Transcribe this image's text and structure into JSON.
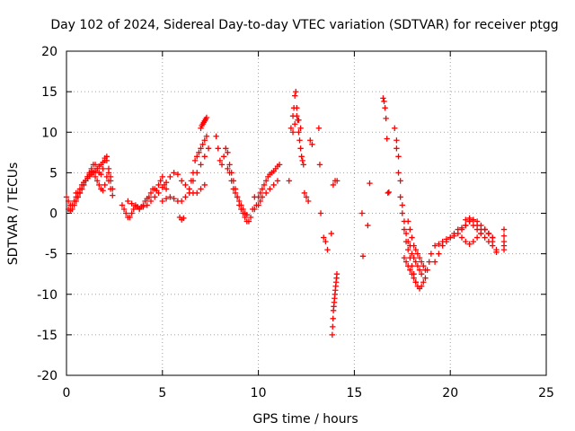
{
  "chart_data": {
    "type": "scatter",
    "title": "Day 102 of 2024, Sidereal Day-to-day VTEC variation (SDTVAR) for receiver ptgg",
    "xlabel": "GPS time / hours",
    "ylabel": "SDTVAR / TECUs",
    "xlim": [
      0,
      25
    ],
    "ylim": [
      -20,
      20
    ],
    "x_ticks": [
      0,
      5,
      10,
      15,
      20,
      25
    ],
    "y_ticks": [
      -20,
      -15,
      -10,
      -5,
      0,
      5,
      10,
      15,
      20
    ],
    "grid": true,
    "marker": "+",
    "series_color": "#ff0000",
    "series": [
      {
        "name": "t00",
        "x": [
          0.0,
          0.1,
          0.2,
          0.3,
          0.4,
          0.5,
          0.6,
          0.7,
          0.8,
          0.9,
          1.0,
          1.1,
          1.2,
          1.3,
          1.4,
          1.5,
          1.6,
          1.7,
          1.8,
          1.9,
          2.0,
          2.1,
          2.2,
          2.3,
          2.4
        ],
        "values": [
          2.0,
          1.5,
          1.0,
          1.0,
          1.5,
          2.0,
          2.5,
          3.0,
          3.5,
          3.8,
          4.0,
          4.3,
          4.6,
          4.8,
          5.0,
          5.2,
          5.5,
          5.8,
          6.0,
          6.3,
          6.8,
          6.5,
          5.0,
          4.0,
          3.0
        ]
      },
      {
        "name": "t01",
        "x": [
          0.1,
          0.2,
          0.3,
          0.4,
          0.5,
          0.6,
          0.7,
          0.8,
          0.9,
          1.0,
          1.1,
          1.2,
          1.3,
          1.4,
          1.5,
          1.6,
          1.7,
          1.8,
          1.9,
          2.0,
          2.1,
          2.2,
          2.3,
          2.4
        ],
        "values": [
          0.5,
          0.3,
          0.5,
          1.0,
          1.5,
          2.0,
          2.5,
          3.0,
          3.5,
          4.0,
          4.5,
          5.0,
          5.2,
          5.0,
          4.5,
          4.0,
          3.5,
          3.0,
          2.8,
          3.5,
          4.5,
          4.0,
          3.0,
          2.2
        ]
      },
      {
        "name": "t02",
        "x": [
          0.5,
          0.6,
          0.7,
          0.8,
          0.9,
          1.0,
          1.1,
          1.2,
          1.3,
          1.4,
          1.5,
          1.6,
          1.7,
          1.8,
          1.9,
          2.0,
          2.1,
          2.2,
          2.3
        ],
        "values": [
          2.5,
          2.0,
          2.5,
          3.0,
          3.5,
          4.0,
          4.5,
          4.8,
          5.5,
          6.0,
          6.0,
          5.5,
          5.0,
          4.8,
          5.5,
          6.5,
          7.0,
          5.5,
          4.5
        ]
      },
      {
        "name": "t03",
        "x": [
          2.9,
          3.0,
          3.1,
          3.2,
          3.3,
          3.4,
          3.5,
          3.6,
          3.7,
          3.8,
          3.9,
          4.0,
          4.1,
          4.2,
          4.3,
          4.4,
          4.5,
          4.6,
          4.7,
          4.8,
          4.9,
          5.0,
          5.1,
          5.2
        ],
        "values": [
          1.0,
          0.5,
          0.0,
          -0.5,
          -0.5,
          0.0,
          0.5,
          1.0,
          0.8,
          0.5,
          0.8,
          1.0,
          1.5,
          1.8,
          2.0,
          2.5,
          3.0,
          3.0,
          2.8,
          3.5,
          4.0,
          4.5,
          3.5,
          3.0
        ]
      },
      {
        "name": "t04",
        "x": [
          3.2,
          3.4,
          3.6,
          3.8,
          4.0,
          4.2,
          4.4,
          4.6,
          4.8,
          5.0,
          5.2,
          5.4,
          5.6,
          5.8,
          6.0,
          6.2,
          6.4,
          6.6,
          6.8,
          7.0,
          7.2
        ],
        "values": [
          1.5,
          1.2,
          0.8,
          0.6,
          0.8,
          1.0,
          1.5,
          2.0,
          2.5,
          3.2,
          3.8,
          4.5,
          5.0,
          4.8,
          4.0,
          3.5,
          3.0,
          2.5,
          2.5,
          3.0,
          3.5
        ]
      },
      {
        "name": "t05",
        "x": [
          5.0,
          5.2,
          5.4,
          5.6,
          5.8,
          6.0,
          6.2,
          6.4,
          6.6,
          6.8,
          7.0,
          7.2,
          7.4
        ],
        "values": [
          1.5,
          1.8,
          2.0,
          1.8,
          1.5,
          1.5,
          2.0,
          2.5,
          4.0,
          5.0,
          6.0,
          7.0,
          8.0
        ]
      },
      {
        "name": "t06",
        "x": [
          6.5,
          6.6,
          6.7,
          6.8,
          6.9,
          7.0,
          7.1,
          7.2,
          7.3
        ],
        "values": [
          4.0,
          5.0,
          6.5,
          7.0,
          7.5,
          8.0,
          8.5,
          9.0,
          9.5
        ]
      },
      {
        "name": "t07",
        "x": [
          7.0,
          7.05,
          7.1,
          7.15,
          7.2,
          7.25,
          7.3
        ],
        "values": [
          10.5,
          10.8,
          11.0,
          11.2,
          11.4,
          11.6,
          11.8
        ]
      },
      {
        "name": "t08",
        "x": [
          7.8,
          7.9,
          8.0,
          8.1,
          8.2,
          8.3,
          8.4,
          8.5,
          8.6,
          8.7,
          8.8,
          8.9,
          9.0,
          9.1,
          9.2,
          9.3,
          9.4,
          9.5,
          9.6,
          9.7,
          9.8
        ],
        "values": [
          9.5,
          8.0,
          6.5,
          6.0,
          7.0,
          8.0,
          7.5,
          6.0,
          5.0,
          4.0,
          3.0,
          2.0,
          1.0,
          0.5,
          0.0,
          -0.5,
          -1.0,
          -1.0,
          -0.5,
          0.5,
          2.0
        ]
      },
      {
        "name": "t09",
        "x": [
          8.4,
          8.5,
          8.6,
          8.7,
          8.8,
          8.9,
          9.0,
          9.1,
          9.2,
          9.3,
          9.4
        ],
        "values": [
          5.5,
          5.0,
          4.0,
          3.0,
          2.5,
          2.0,
          1.5,
          1.0,
          0.5,
          0.0,
          -0.2
        ]
      },
      {
        "name": "t10",
        "x": [
          5.9,
          6.0,
          6.1
        ],
        "values": [
          -0.5,
          -0.8,
          -0.6
        ]
      },
      {
        "name": "t11",
        "x": [
          9.8,
          9.9,
          10.0,
          10.1,
          10.2,
          10.3,
          10.4,
          10.5,
          10.6,
          10.7,
          10.8,
          10.9,
          11.0,
          11.1
        ],
        "values": [
          0.5,
          1.0,
          2.0,
          2.5,
          3.0,
          3.5,
          4.0,
          4.5,
          4.8,
          5.0,
          5.2,
          5.5,
          5.8,
          6.0
        ]
      },
      {
        "name": "t12",
        "x": [
          10.0,
          10.1,
          10.2,
          10.4,
          10.6,
          10.8,
          11.0
        ],
        "values": [
          1.0,
          1.5,
          2.0,
          2.5,
          3.0,
          3.5,
          4.0
        ]
      },
      {
        "name": "t13",
        "x": [
          11.6,
          11.7,
          11.8,
          11.85,
          11.9,
          11.95,
          12.0,
          12.05,
          12.1,
          12.15,
          12.2,
          12.25,
          12.3,
          12.35
        ],
        "values": [
          4.0,
          10.5,
          12.0,
          13.0,
          14.5,
          15.0,
          13.0,
          11.5,
          10.0,
          9.0,
          8.0,
          7.0,
          6.5,
          6.0
        ]
      },
      {
        "name": "t14",
        "x": [
          11.8,
          11.9,
          12.0,
          12.1,
          12.2
        ],
        "values": [
          10.0,
          11.0,
          12.0,
          11.5,
          10.5
        ]
      },
      {
        "name": "t15",
        "x": [
          12.4,
          12.5,
          12.6,
          12.7,
          12.8
        ],
        "values": [
          2.5,
          2.0,
          1.5,
          9.0,
          8.5
        ]
      },
      {
        "name": "t16",
        "x": [
          13.15,
          13.2,
          13.25,
          13.4,
          13.5,
          13.6,
          13.8,
          13.9,
          14.0,
          14.1
        ],
        "values": [
          10.5,
          6.0,
          0.0,
          -3.0,
          -3.5,
          -4.5,
          -2.5,
          3.5,
          4.0,
          4.0
        ]
      },
      {
        "name": "t17",
        "x": [
          13.85,
          13.87,
          13.89,
          13.91,
          13.93,
          13.95,
          13.97,
          13.99,
          14.01,
          14.03,
          14.05,
          14.07,
          14.09
        ],
        "values": [
          -15.0,
          -14.0,
          -13.0,
          -12.0,
          -11.5,
          -11.0,
          -10.5,
          -10.0,
          -9.5,
          -9.0,
          -8.5,
          -8.0,
          -7.5
        ]
      },
      {
        "name": "t18",
        "x": [
          15.4,
          15.45,
          15.7,
          15.8
        ],
        "values": [
          0.0,
          -5.3,
          -1.5,
          3.7
        ]
      },
      {
        "name": "t19",
        "x": [
          16.5,
          16.55,
          16.6,
          16.65,
          16.7,
          16.75,
          16.8
        ],
        "values": [
          14.2,
          13.8,
          13.0,
          11.7,
          9.2,
          2.5,
          2.6
        ]
      },
      {
        "name": "t20",
        "x": [
          17.1,
          17.2,
          17.3,
          17.4,
          17.5,
          17.6,
          17.7,
          17.8,
          17.9,
          18.0,
          18.1,
          18.2,
          18.3,
          18.4,
          18.5,
          18.6,
          18.7,
          18.8,
          18.9,
          19.0
        ],
        "values": [
          10.5,
          8.0,
          5.0,
          2.0,
          0.0,
          -2.0,
          -3.5,
          -4.5,
          -5.5,
          -6.5,
          -7.5,
          -8.5,
          -9.0,
          -9.3,
          -9.0,
          -8.5,
          -8.0,
          -7.0,
          -6.0,
          -5.0
        ]
      },
      {
        "name": "t21",
        "x": [
          17.2,
          17.3,
          17.4,
          17.5,
          17.6,
          17.7,
          17.8,
          17.9,
          18.0,
          18.1,
          18.2,
          18.3,
          18.4,
          18.5
        ],
        "values": [
          9.0,
          7.0,
          4.0,
          1.0,
          -1.0,
          -2.5,
          -3.5,
          -4.0,
          -5.0,
          -5.5,
          -6.0,
          -6.5,
          -7.0,
          -7.5
        ]
      },
      {
        "name": "t22",
        "x": [
          17.8,
          17.9,
          18.0,
          18.1,
          18.2,
          18.3,
          18.4,
          18.5,
          18.6,
          18.7
        ],
        "values": [
          -1.0,
          -2.0,
          -3.0,
          -4.0,
          -4.5,
          -5.0,
          -5.5,
          -6.0,
          -6.5,
          -7.0
        ]
      },
      {
        "name": "t23",
        "x": [
          17.6,
          17.7,
          17.8,
          17.9,
          18.0,
          18.1,
          18.2
        ],
        "values": [
          -5.5,
          -6.0,
          -6.5,
          -7.0,
          -7.5,
          -8.0,
          -8.5
        ]
      },
      {
        "name": "t24",
        "x": [
          19.2,
          19.4,
          19.6,
          19.8,
          20.0,
          20.2,
          20.4,
          20.6,
          20.8,
          21.0,
          21.2,
          21.4,
          21.6,
          21.8,
          22.0,
          22.2
        ],
        "values": [
          -6.0,
          -5.0,
          -4.0,
          -3.5,
          -3.0,
          -2.5,
          -2.0,
          -1.8,
          -1.5,
          -1.0,
          -0.8,
          -1.0,
          -1.5,
          -2.0,
          -2.5,
          -3.0
        ]
      },
      {
        "name": "t25",
        "x": [
          19.2,
          19.4,
          19.6,
          19.8,
          20.0,
          20.2,
          20.4,
          20.6,
          20.8,
          21.0,
          21.2,
          21.4,
          21.6,
          21.8,
          22.0,
          22.2
        ],
        "values": [
          -4.0,
          -3.8,
          -3.5,
          -3.2,
          -3.0,
          -2.8,
          -2.5,
          -2.0,
          -1.5,
          -1.0,
          -1.5,
          -2.0,
          -2.5,
          -2.0,
          -2.5,
          -3.0
        ]
      },
      {
        "name": "t26",
        "x": [
          20.6,
          20.8,
          21.0,
          21.2,
          21.4,
          21.6,
          21.8,
          22.0,
          22.2,
          22.4
        ],
        "values": [
          -3.0,
          -3.5,
          -3.8,
          -3.5,
          -3.0,
          -2.5,
          -3.0,
          -3.5,
          -4.0,
          -4.5
        ]
      },
      {
        "name": "t27",
        "x": [
          20.8,
          21.0,
          21.2,
          21.4,
          21.6,
          21.8,
          22.0,
          22.2,
          22.4
        ],
        "values": [
          -0.8,
          -0.6,
          -0.8,
          -1.5,
          -2.0,
          -2.0,
          -2.5,
          -3.5,
          -4.8
        ]
      },
      {
        "name": "t28",
        "x": [
          22.8,
          22.8,
          22.8,
          22.8,
          22.8
        ],
        "values": [
          -2.0,
          -2.8,
          -3.5,
          -4.0,
          -4.5
        ]
      }
    ]
  }
}
